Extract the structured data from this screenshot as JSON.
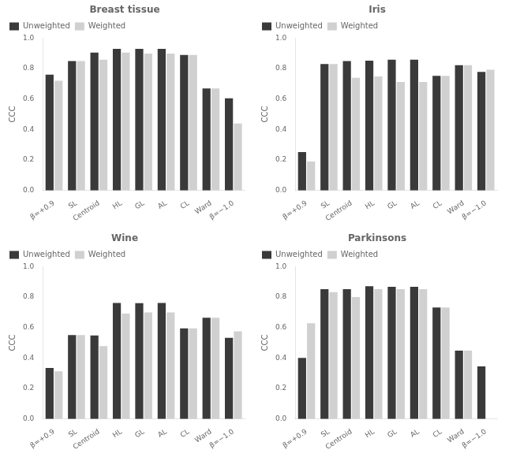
{
  "chart_data": [
    {
      "type": "bar",
      "title": "Breast tissue",
      "ylabel": "CCC",
      "categories": [
        "β=+0.9",
        "SL",
        "Centroid",
        "HL",
        "GL",
        "AL",
        "CL",
        "Ward",
        "β=−1.0"
      ],
      "series": [
        {
          "name": "Unweighted",
          "color": "#3a3a3a",
          "values": [
            0.76,
            0.85,
            0.905,
            0.93,
            0.93,
            0.93,
            0.89,
            0.67,
            0.605
          ]
        },
        {
          "name": "Weighted",
          "color": "#d0d0d0",
          "values": [
            0.72,
            0.85,
            0.858,
            0.905,
            0.898,
            0.898,
            0.89,
            0.67,
            0.44
          ]
        }
      ],
      "ylim": [
        0.0,
        1.0
      ],
      "yticks": [
        {
          "value": 0.0,
          "label": "0.0"
        },
        0.2,
        0.4,
        0.6,
        0.8,
        {
          "value": 1.0,
          "label": "1.0"
        }
      ],
      "grid": false,
      "legend": "upper left"
    },
    {
      "type": "bar",
      "title": "Iris",
      "ylabel": "CCC",
      "categories": [
        "β=+0.9",
        "SL",
        "Centroid",
        "HL",
        "GL",
        "AL",
        "CL",
        "Ward",
        "β=−1.0"
      ],
      "series": [
        {
          "name": "Unweighted",
          "color": "#3a3a3a",
          "values": [
            0.252,
            0.83,
            0.85,
            0.852,
            0.858,
            0.858,
            0.752,
            0.822,
            0.778
          ]
        },
        {
          "name": "Weighted",
          "color": "#d0d0d0",
          "values": [
            0.19,
            0.83,
            0.74,
            0.748,
            0.712,
            0.712,
            0.752,
            0.822,
            0.792
          ]
        }
      ],
      "ylim": [
        0.0,
        1.0
      ],
      "yticks": [
        {
          "value": 0.0,
          "label": "0.0"
        },
        0.2,
        0.4,
        0.6,
        0.8,
        {
          "value": 1.0,
          "label": "1.0"
        }
      ],
      "grid": false,
      "legend": "upper left"
    },
    {
      "type": "bar",
      "title": "Wine",
      "ylabel": "CCC",
      "categories": [
        "β=+0.9",
        "SL",
        "Centroid",
        "HL",
        "GL",
        "AL",
        "CL",
        "Ward",
        "β=−1.0"
      ],
      "series": [
        {
          "name": "Unweighted",
          "color": "#3a3a3a",
          "values": [
            0.335,
            0.55,
            0.548,
            0.762,
            0.76,
            0.762,
            0.595,
            0.665,
            0.532
          ]
        },
        {
          "name": "Weighted",
          "color": "#d0d0d0",
          "values": [
            0.312,
            0.55,
            0.478,
            0.692,
            0.7,
            0.7,
            0.595,
            0.665,
            0.575
          ]
        }
      ],
      "ylim": [
        0.0,
        1.0
      ],
      "yticks": [
        {
          "value": 0.0,
          "label": "0.0"
        },
        0.2,
        0.4,
        0.6,
        0.8,
        {
          "value": 1.0,
          "label": "1.0"
        }
      ],
      "grid": false,
      "legend": "upper left"
    },
    {
      "type": "bar",
      "title": "Parkinsons",
      "ylabel": "CCC",
      "categories": [
        "β=+0.9",
        "SL",
        "Centroid",
        "HL",
        "GL",
        "AL",
        "CL",
        "Ward",
        "β=−1.0"
      ],
      "series": [
        {
          "name": "Unweighted",
          "color": "#3a3a3a",
          "values": [
            0.4,
            0.852,
            0.852,
            0.872,
            0.868,
            0.868,
            0.732,
            0.448,
            0.345
          ]
        },
        {
          "name": "Weighted",
          "color": "#d0d0d0",
          "values": [
            0.628,
            0.832,
            0.8,
            0.852,
            0.852,
            0.852,
            0.732,
            0.448,
            0.0
          ]
        }
      ],
      "ylim": [
        0.0,
        1.0
      ],
      "yticks": [
        {
          "value": 0.0,
          "label": "0.0"
        },
        0.2,
        0.4,
        0.6,
        0.8,
        {
          "value": 1.0,
          "label": "1.0"
        }
      ],
      "grid": false,
      "legend": "upper left"
    }
  ]
}
